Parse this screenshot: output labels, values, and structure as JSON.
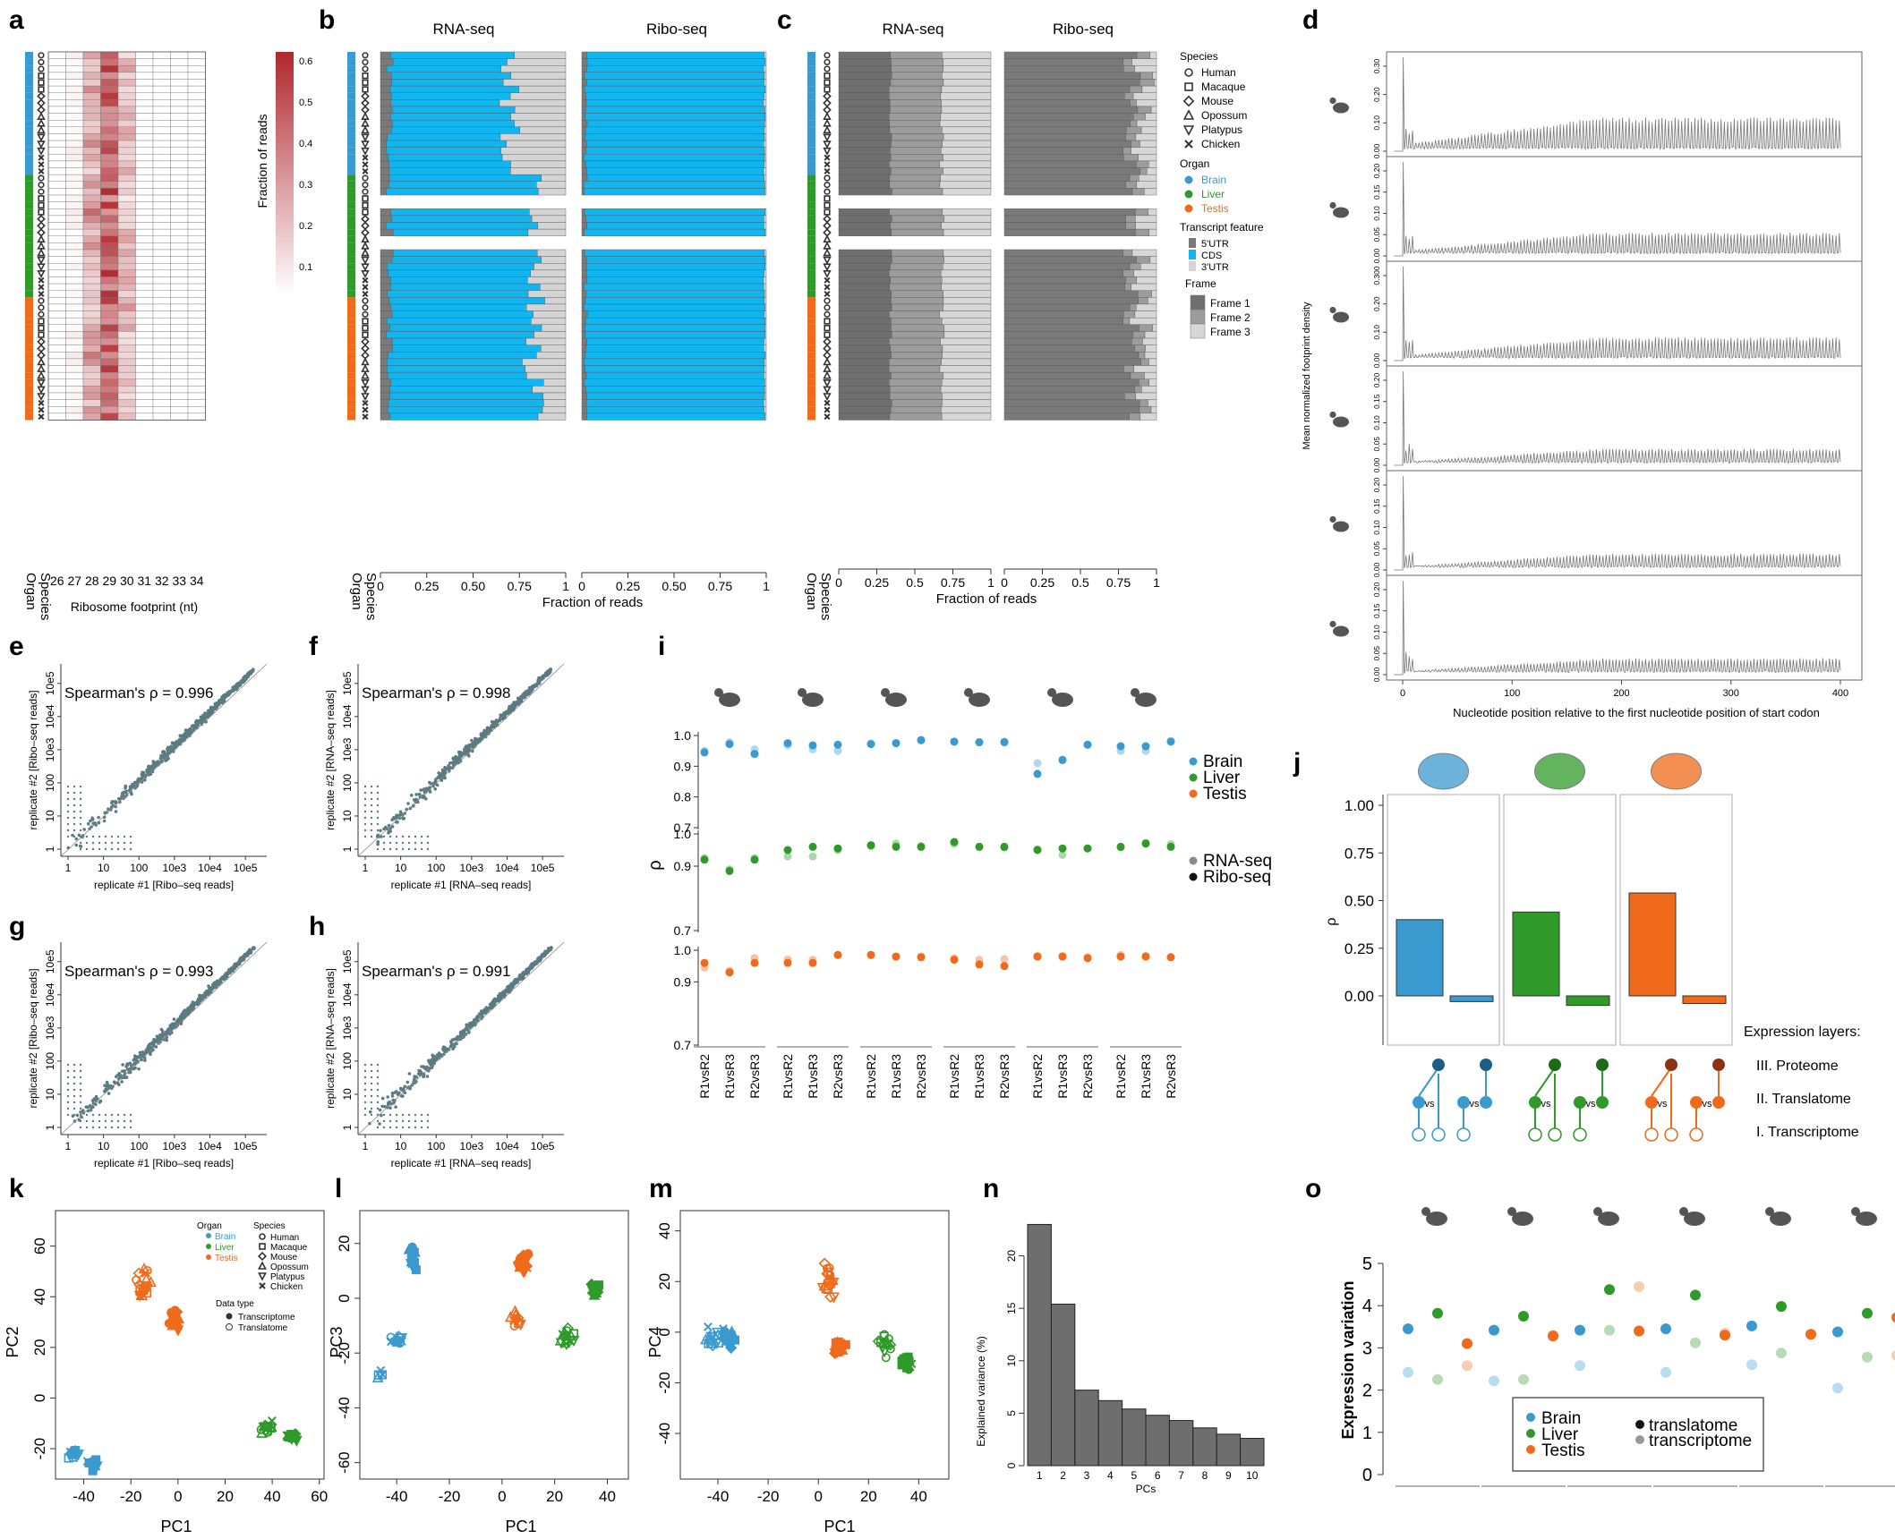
{
  "panel_letters": [
    "a",
    "b",
    "c",
    "d",
    "e",
    "f",
    "g",
    "h",
    "i",
    "j",
    "k",
    "l",
    "m",
    "n",
    "o"
  ],
  "colors": {
    "brain": "#3a9ad0",
    "liver": "#2f9a2a",
    "testis": "#ef6a1a",
    "cds": "#11b5f0",
    "utr5": "#7a7a7a",
    "utr3": "#d4d4d4",
    "heat_max": "#b0272d",
    "scatter": "#5b7b83",
    "bar_grey": "#6e6e6e"
  },
  "panel_a": {
    "colorbar_title": "Fraction of reads",
    "colorbar_ticks": [
      "0.1",
      "0.2",
      "0.3",
      "0.4",
      "0.5",
      "0.6"
    ],
    "x_ticks": [
      "26",
      "27",
      "28",
      "29",
      "30",
      "31",
      "32",
      "33",
      "34"
    ],
    "xlabel": "Ribosome footprint (nt)",
    "row_labels": [
      "Species",
      "Organ"
    ]
  },
  "panel_b": {
    "titles": [
      "RNA-seq",
      "Ribo-seq"
    ],
    "x_ticks": [
      "0",
      "0.25",
      "0.50",
      "0.75",
      "1"
    ],
    "xlabel": "Fraction of reads",
    "row_labels": [
      "Species",
      "Organ"
    ]
  },
  "panel_c": {
    "titles": [
      "RNA-seq",
      "Ribo-seq"
    ],
    "x_ticks": [
      "0",
      "0.25",
      "0.5",
      "0.75",
      "1"
    ],
    "xlabel": "Fraction of reads",
    "row_labels": [
      "Species",
      "Organ"
    ],
    "legend": {
      "species_title": "Species",
      "species": [
        "Human",
        "Macaque",
        "Mouse",
        "Opossum",
        "Platypus",
        "Chicken"
      ],
      "organ_title": "Organ",
      "organs": [
        "Brain",
        "Liver",
        "Testis"
      ],
      "feature_title": "Transcript feature",
      "features": [
        "5'UTR",
        "CDS",
        "3'UTR"
      ],
      "frame_title": "Frame",
      "frames": [
        "Frame 1",
        "Frame 2",
        "Frame 3"
      ]
    }
  },
  "panel_d": {
    "ylabel": "Mean normalized footprint density",
    "xlabel": "Nucleotide position relative to the first nucleotide position of start codon",
    "x_ticks": [
      "0",
      "100",
      "200",
      "300",
      "400"
    ],
    "y_ticks": [
      [
        "0.00",
        "0.10",
        "0.20",
        "0.30"
      ],
      [
        "0.00",
        "0.05",
        "0.10",
        "0.15",
        "0.20"
      ],
      [
        "0.00",
        "0.10",
        "0.20",
        "0.300"
      ],
      [
        "0.00",
        "0.05",
        "0.10",
        "0.15",
        "0.20"
      ],
      [
        "0.00",
        "0.05",
        "0.10",
        "0.15",
        "0.20"
      ],
      [
        "0.00",
        "0.05",
        "0.10",
        "0.15",
        "0.20"
      ]
    ]
  },
  "panel_efgh": [
    {
      "letter": "e",
      "label": "Spearman's ρ = 0.996",
      "xlabel": "replicate #1 [Ribo–seq reads]",
      "ylabel": "replicate #2 [Ribo–seq reads]"
    },
    {
      "letter": "f",
      "label": "Spearman's ρ = 0.998",
      "xlabel": "replicate #1 [RNA–seq reads]",
      "ylabel": "replicate #2 [RNA–seq reads]"
    },
    {
      "letter": "g",
      "label": "Spearman's ρ = 0.993",
      "xlabel": "replicate #1 [Ribo–seq reads]",
      "ylabel": "replicate #2 [Ribo–seq reads]"
    },
    {
      "letter": "h",
      "label": "Spearman's ρ = 0.991",
      "xlabel": "replicate #1 [RNA–seq reads]",
      "ylabel": "replicate #2 [RNA–seq reads]"
    }
  ],
  "scatter_ticks": [
    "1",
    "10",
    "100",
    "10e3",
    "10e4",
    "10e5"
  ],
  "panel_i": {
    "ylabel": "ρ",
    "y_ticks": [
      "0.7",
      "0.8",
      "0.9",
      "1.0"
    ],
    "y_ticks_short": [
      "0.7",
      "0.9",
      "1.0"
    ],
    "x_labels": [
      "R1vsR2",
      "R1vsR3",
      "R2vsR3"
    ],
    "legend_organs": [
      "Brain",
      "Liver",
      "Testis"
    ],
    "legend_types": [
      "RNA-seq",
      "Ribo-seq"
    ]
  },
  "panel_j": {
    "ylabel": "ρ",
    "y_ticks": [
      "0.00",
      "0.25",
      "0.50",
      "0.75",
      "1.00"
    ],
    "layers_title": "Expression layers:",
    "layers": [
      "III. Proteome",
      "II. Translatome",
      "I. Transcriptome"
    ],
    "vs": "vs"
  },
  "panel_k": {
    "xlabel": "PC1",
    "ylabel": "PC2",
    "x_ticks": [
      "-40",
      "-20",
      "0",
      "20",
      "40",
      "60"
    ],
    "y_ticks": [
      "-20",
      "0",
      "20",
      "40",
      "60"
    ],
    "legend": {
      "organ_title": "Organ",
      "organs": [
        "Brain",
        "Liver",
        "Testis"
      ],
      "species_title": "Species",
      "species": [
        "Human",
        "Macaque",
        "Mouse",
        "Opossum",
        "Platypus",
        "Chicken"
      ],
      "type_title": "Data type",
      "types": [
        "Transcriptome",
        "Translatome"
      ]
    }
  },
  "panel_l": {
    "xlabel": "PC1",
    "ylabel": "PC3",
    "x_ticks": [
      "-40",
      "-20",
      "0",
      "20",
      "40"
    ],
    "y_ticks": [
      "-60",
      "-40",
      "-20",
      "0",
      "20"
    ]
  },
  "panel_m": {
    "xlabel": "PC1",
    "ylabel": "PC4",
    "x_ticks": [
      "-40",
      "-20",
      "0",
      "20",
      "40"
    ],
    "y_ticks": [
      "-40",
      "-20",
      "0",
      "20",
      "40"
    ]
  },
  "panel_o": {
    "ylabel": "Expression variation",
    "y_ticks": [
      "0",
      "1",
      "2",
      "3",
      "4",
      "5"
    ],
    "legend_organs": [
      "Brain",
      "Liver",
      "Testis"
    ],
    "legend_types": [
      "translatome",
      "transcriptome"
    ]
  },
  "chart_data": [
    {
      "type": "bar",
      "panel": "n",
      "categories": [
        "1",
        "2",
        "3",
        "4",
        "5",
        "6",
        "7",
        "8",
        "9",
        "10"
      ],
      "values": [
        23.0,
        15.4,
        7.2,
        6.2,
        5.4,
        4.8,
        4.3,
        3.6,
        3.0,
        2.6
      ],
      "ylabel": "Explained variance (%)",
      "xlabel": "PCs",
      "y_ticks": [
        "0",
        "5",
        "10",
        "15",
        "20"
      ],
      "ylim": [
        0,
        25
      ]
    },
    {
      "type": "bar",
      "panel": "j",
      "categories": [
        "Brain",
        "Liver",
        "Testis"
      ],
      "series": [
        {
          "values": [
            0.4,
            0.44,
            0.54
          ]
        },
        {
          "values": [
            -0.03,
            -0.05,
            -0.04
          ]
        }
      ],
      "ylim": [
        -0.1,
        1.05
      ]
    },
    {
      "type": "scatter",
      "panel": "o",
      "categories": [
        "Human",
        "Macaque",
        "Mouse",
        "Opossum",
        "Platypus",
        "Chicken"
      ],
      "series": [
        {
          "name": "Brain translatome",
          "values": [
            3.45,
            3.42,
            3.42,
            3.45,
            3.52,
            3.38
          ]
        },
        {
          "name": "Liver translatome",
          "values": [
            3.82,
            3.75,
            4.38,
            4.25,
            3.98,
            3.82
          ]
        },
        {
          "name": "Testis translatome",
          "values": [
            3.1,
            3.28,
            3.4,
            3.3,
            3.32,
            3.72
          ]
        },
        {
          "name": "Brain transcriptome",
          "values": [
            2.42,
            2.22,
            2.58,
            2.42,
            2.6,
            2.05
          ]
        },
        {
          "name": "Liver transcriptome",
          "values": [
            2.25,
            2.25,
            3.42,
            3.12,
            2.88,
            2.78
          ]
        },
        {
          "name": "Testis transcriptome",
          "values": [
            2.58,
            3.3,
            4.45,
            3.35,
            3.32,
            2.82
          ]
        }
      ],
      "ylim": [
        0,
        5
      ]
    },
    {
      "type": "scatter",
      "panel": "i",
      "comparisons": [
        "R1vsR2",
        "R1vsR3",
        "R2vsR3"
      ],
      "species": [
        "Human",
        "Macaque",
        "Mouse",
        "Opossum",
        "Platypus",
        "Chicken"
      ],
      "series": [
        {
          "name": "Brain Ribo-seq",
          "values": [
            0.945,
            0.972,
            0.94,
            0.975,
            0.968,
            0.97,
            0.972,
            0.975,
            0.985,
            0.98,
            0.978,
            0.978,
            0.875,
            0.92,
            0.97,
            0.965,
            0.965,
            0.98
          ]
        },
        {
          "name": "Brain RNA-seq",
          "values": [
            0.95,
            0.978,
            0.955,
            0.968,
            0.955,
            0.95,
            0.974,
            0.976,
            0.984,
            0.979,
            0.978,
            0.98,
            0.91,
            0.922,
            0.97,
            0.95,
            0.95,
            0.982
          ]
        },
        {
          "name": "Liver Ribo-seq",
          "values": [
            0.92,
            0.885,
            0.92,
            0.95,
            0.96,
            0.955,
            0.965,
            0.96,
            0.96,
            0.975,
            0.96,
            0.96,
            0.95,
            0.955,
            0.955,
            0.96,
            0.97,
            0.96
          ]
        },
        {
          "name": "Liver RNA-seq",
          "values": [
            0.925,
            0.89,
            0.925,
            0.93,
            0.93,
            0.95,
            0.962,
            0.97,
            0.962,
            0.97,
            0.96,
            0.958,
            0.952,
            0.935,
            0.955,
            0.958,
            0.972,
            0.968
          ]
        },
        {
          "name": "Testis Ribo-seq",
          "values": [
            0.96,
            0.93,
            0.96,
            0.96,
            0.96,
            0.985,
            0.985,
            0.98,
            0.978,
            0.97,
            0.955,
            0.95,
            0.98,
            0.98,
            0.975,
            0.98,
            0.98,
            0.978
          ]
        },
        {
          "name": "Testis RNA-seq",
          "values": [
            0.945,
            0.935,
            0.975,
            0.97,
            0.97,
            0.985,
            0.985,
            0.98,
            0.98,
            0.975,
            0.97,
            0.972,
            0.982,
            0.982,
            0.978,
            0.985,
            0.982,
            0.978
          ]
        }
      ],
      "ylim": [
        0.7,
        1.0
      ]
    }
  ]
}
